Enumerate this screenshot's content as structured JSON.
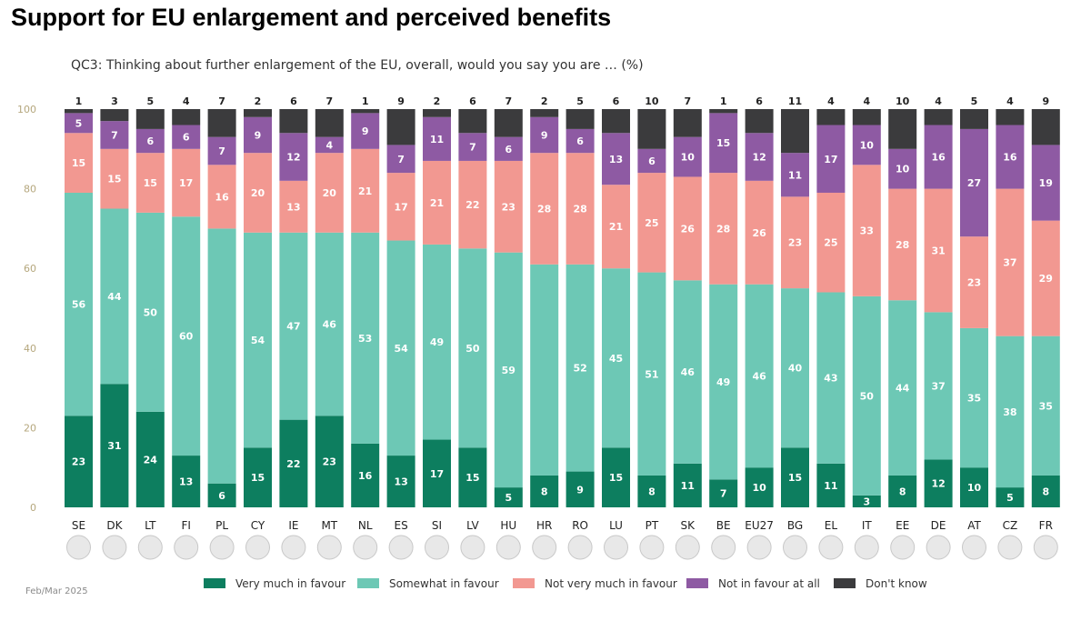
{
  "chart_data": {
    "type": "bar",
    "stacked": true,
    "title": "Support for EU enlargement and perceived benefits",
    "subtitle": "QC3: Thinking about further enlargement of the EU, overall, would you say you are … (%)",
    "footnote": "Feb/Mar 2025",
    "ylim": [
      0,
      100
    ],
    "yticks": [
      "0",
      "20",
      "40",
      "60",
      "80",
      "100"
    ],
    "categories": [
      "SE",
      "DK",
      "LT",
      "FI",
      "PL",
      "CY",
      "IE",
      "MT",
      "NL",
      "ES",
      "SI",
      "LV",
      "HU",
      "HR",
      "RO",
      "LU",
      "PT",
      "SK",
      "BE",
      "EU27",
      "BG",
      "EL",
      "IT",
      "EE",
      "DE",
      "AT",
      "CZ",
      "FR"
    ],
    "series": [
      {
        "name": "Very much in favour",
        "color": "#0d7e5f",
        "values": [
          23,
          31,
          24,
          13,
          6,
          15,
          22,
          23,
          16,
          13,
          17,
          15,
          5,
          8,
          9,
          15,
          8,
          11,
          7,
          10,
          15,
          11,
          3,
          8,
          12,
          10,
          5,
          8
        ]
      },
      {
        "name": "Somewhat in favour",
        "color": "#6dc8b5",
        "values": [
          56,
          44,
          50,
          60,
          64,
          54,
          47,
          46,
          53,
          54,
          49,
          50,
          59,
          53,
          52,
          45,
          51,
          46,
          49,
          46,
          40,
          43,
          50,
          44,
          37,
          35,
          38,
          35
        ]
      },
      {
        "name": "Not very much in favour",
        "color": "#f29891",
        "values": [
          15,
          15,
          15,
          17,
          16,
          20,
          13,
          20,
          21,
          17,
          21,
          22,
          23,
          28,
          28,
          21,
          25,
          26,
          28,
          26,
          23,
          25,
          33,
          28,
          31,
          23,
          37,
          29
        ]
      },
      {
        "name": "Not in favour at all",
        "color": "#8e5aa3",
        "values": [
          5,
          7,
          6,
          6,
          7,
          9,
          12,
          4,
          9,
          7,
          11,
          7,
          6,
          9,
          6,
          13,
          6,
          10,
          15,
          12,
          11,
          17,
          10,
          10,
          16,
          27,
          16,
          19
        ]
      },
      {
        "name": "Don't know",
        "color": "#3b3b3d",
        "values": [
          1,
          3,
          5,
          4,
          7,
          2,
          6,
          7,
          1,
          9,
          2,
          6,
          7,
          2,
          5,
          6,
          10,
          7,
          1,
          6,
          11,
          4,
          4,
          10,
          4,
          5,
          4,
          9
        ]
      }
    ],
    "hidden_labels": {
      "4": [
        1,
        4
      ],
      "13": [
        1
      ]
    }
  }
}
